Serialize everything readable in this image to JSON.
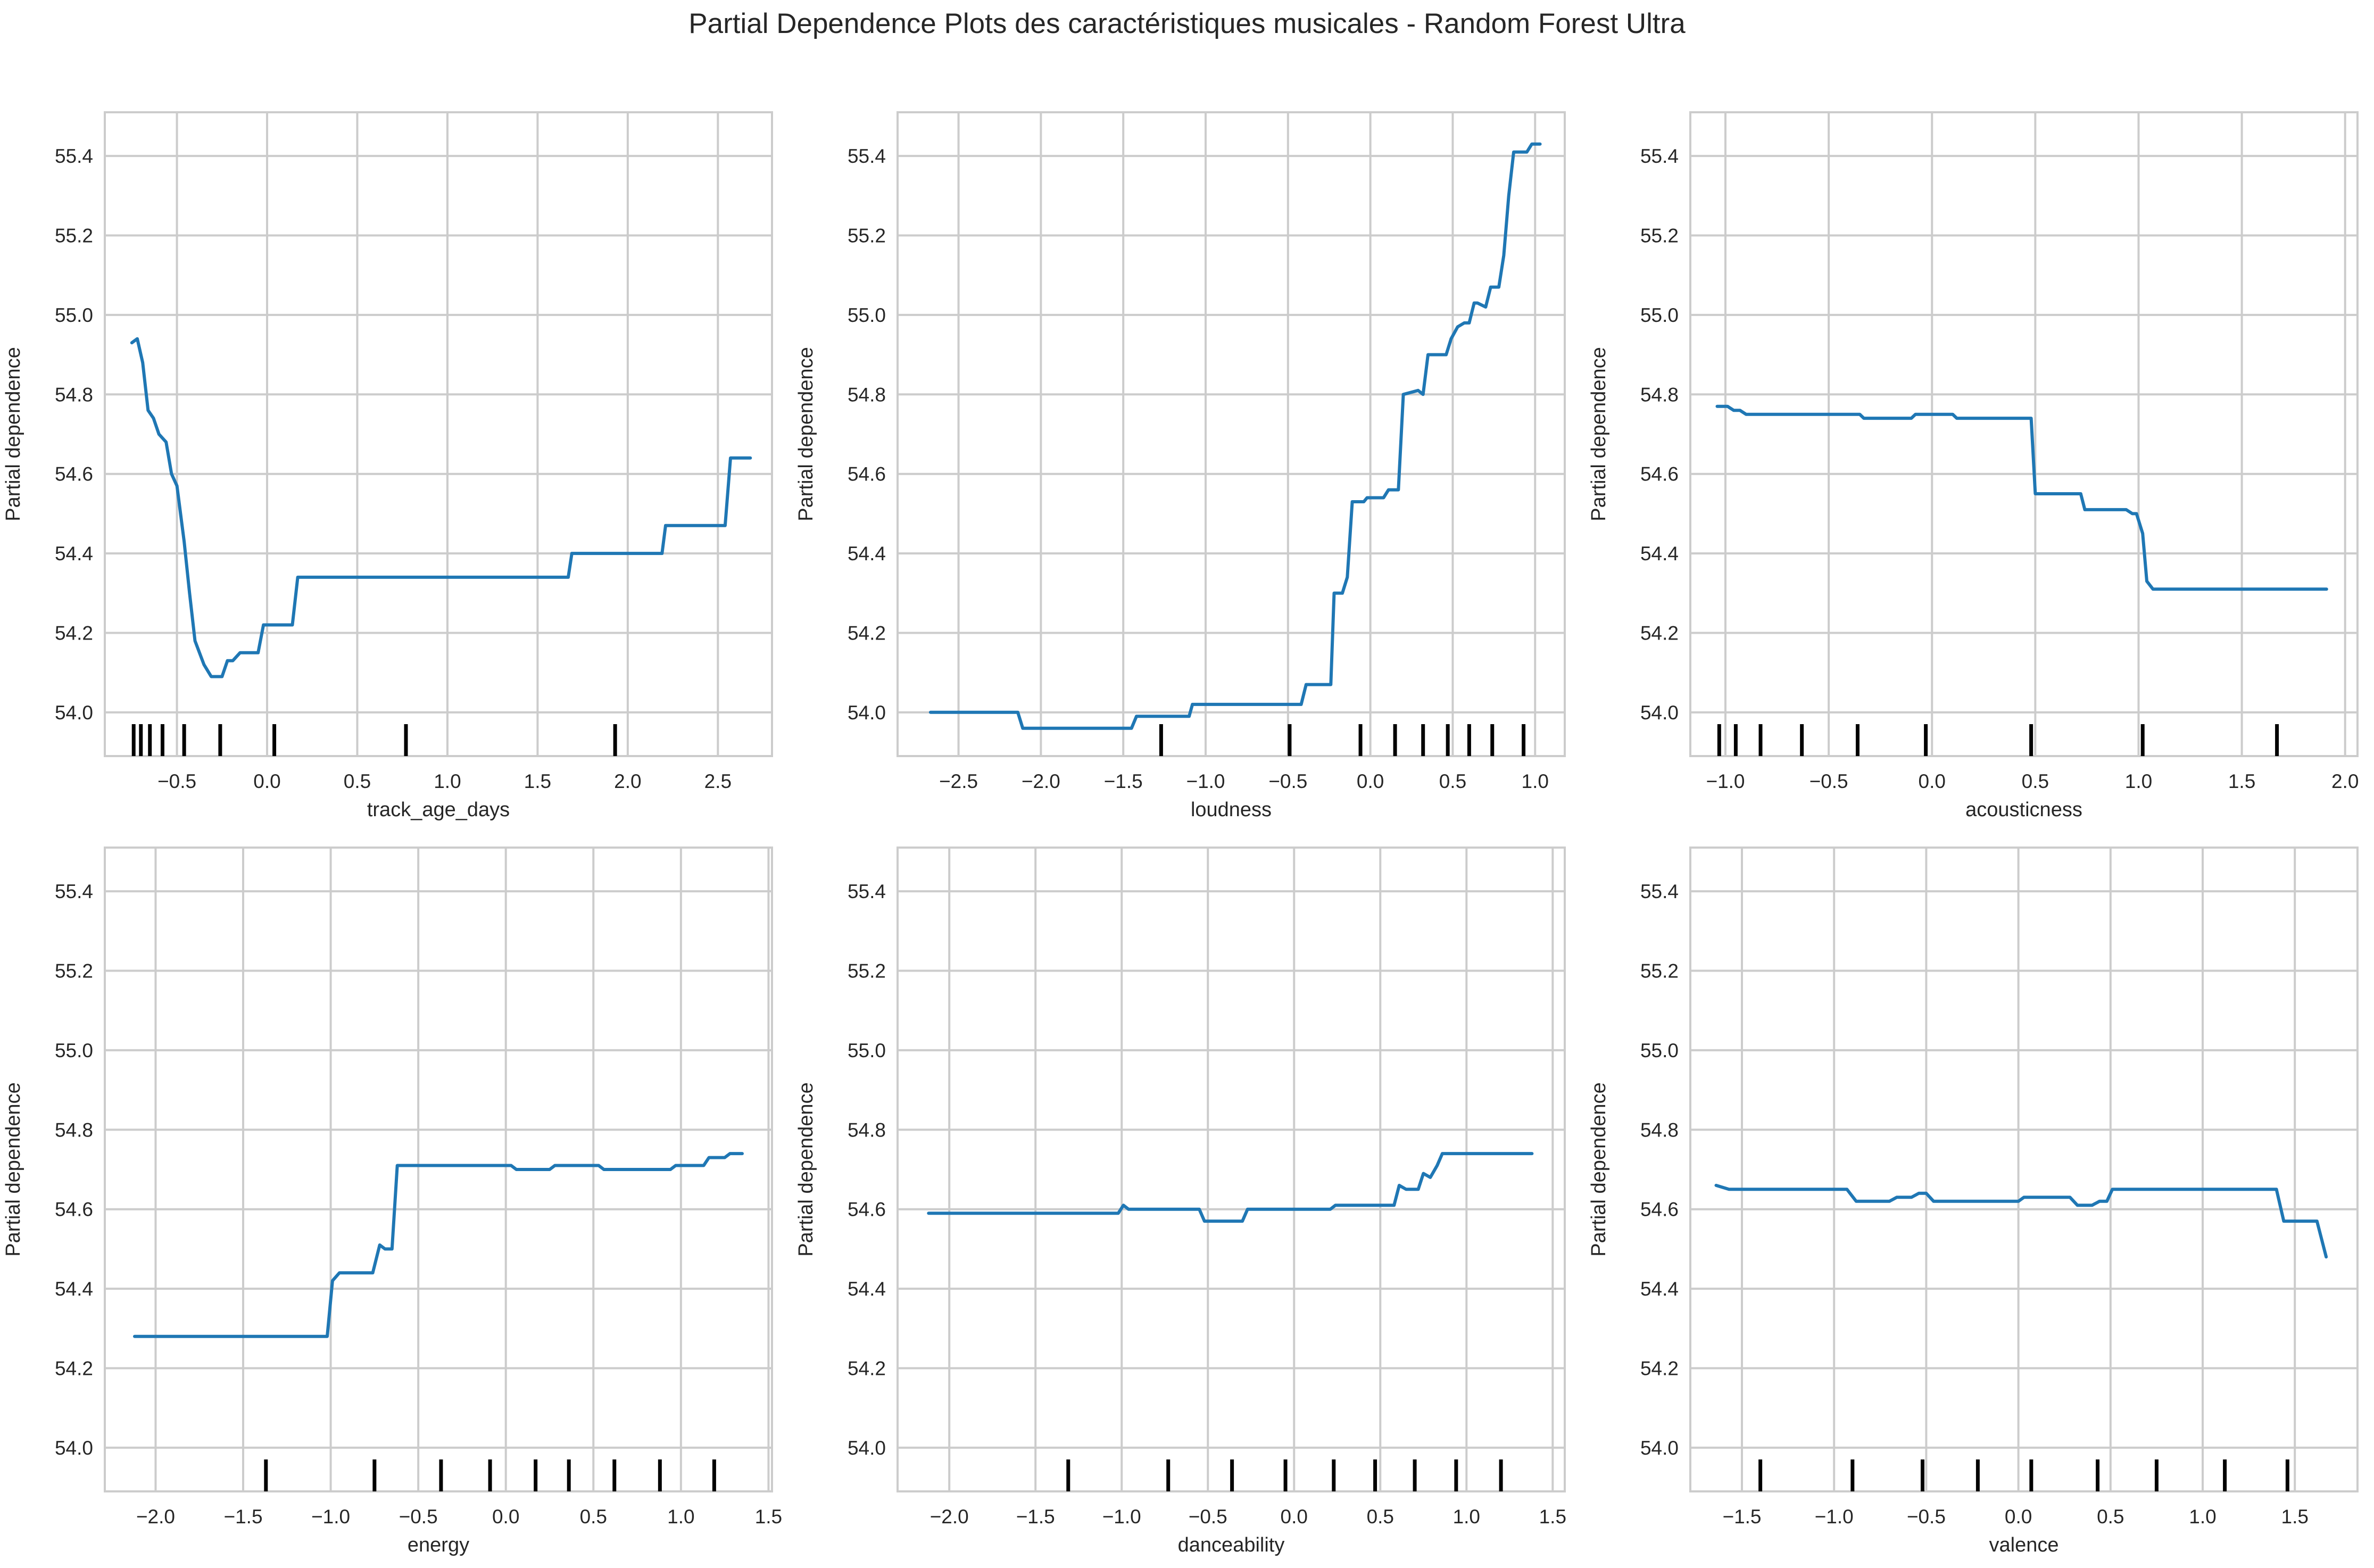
{
  "title": "Partial Dependence Plots des caractéristiques musicales - Random Forest Ultra",
  "colors": {
    "line": "#1f77b4",
    "grid": "#cccccc",
    "axes_edge": "#cccccc",
    "rug": "#000000",
    "text": "#262626"
  },
  "chart_data": [
    {
      "type": "line",
      "title": "",
      "xlabel": "track_age_days",
      "ylabel": "Partial dependence",
      "xlim": [
        -0.9,
        2.8
      ],
      "ylim": [
        53.89,
        55.51
      ],
      "xticks": [
        -0.5,
        0.0,
        0.5,
        1.0,
        1.5,
        2.0,
        2.5
      ],
      "yticks": [
        54.0,
        54.2,
        54.4,
        54.6,
        54.8,
        55.0,
        55.2,
        55.4
      ],
      "grid": true,
      "series": [
        {
          "points": [
            [
              -0.75,
              54.93
            ],
            [
              -0.72,
              54.94
            ],
            [
              -0.69,
              54.88
            ],
            [
              -0.66,
              54.76
            ],
            [
              -0.63,
              54.74
            ],
            [
              -0.6,
              54.7
            ],
            [
              -0.56,
              54.68
            ],
            [
              -0.53,
              54.6
            ],
            [
              -0.5,
              54.57
            ],
            [
              -0.46,
              54.43
            ],
            [
              -0.43,
              54.3
            ],
            [
              -0.4,
              54.18
            ],
            [
              -0.35,
              54.12
            ],
            [
              -0.31,
              54.09
            ],
            [
              -0.25,
              54.09
            ],
            [
              -0.22,
              54.13
            ],
            [
              -0.19,
              54.13
            ],
            [
              -0.15,
              54.15
            ],
            [
              -0.05,
              54.15
            ],
            [
              -0.02,
              54.22
            ],
            [
              0.14,
              54.22
            ],
            [
              0.17,
              54.34
            ],
            [
              1.67,
              54.34
            ],
            [
              1.69,
              54.4
            ],
            [
              2.19,
              54.4
            ],
            [
              2.21,
              54.47
            ],
            [
              2.54,
              54.47
            ],
            [
              2.57,
              54.64
            ],
            [
              2.68,
              54.64
            ]
          ]
        }
      ],
      "rug": [
        -0.74,
        -0.7,
        -0.65,
        -0.58,
        -0.46,
        -0.26,
        0.04,
        0.77,
        1.93
      ]
    },
    {
      "type": "line",
      "title": "",
      "xlabel": "loudness",
      "ylabel": "Partial dependence",
      "xlim": [
        -2.87,
        1.18
      ],
      "ylim": [
        53.89,
        55.51
      ],
      "xticks": [
        -2.5,
        -2.0,
        -1.5,
        -1.0,
        -0.5,
        0.0,
        0.5,
        1.0
      ],
      "yticks": [
        54.0,
        54.2,
        54.4,
        54.6,
        54.8,
        55.0,
        55.2,
        55.4
      ],
      "grid": true,
      "series": [
        {
          "points": [
            [
              -2.67,
              54.0
            ],
            [
              -2.14,
              54.0
            ],
            [
              -2.11,
              53.96
            ],
            [
              -1.5,
              53.96
            ],
            [
              -1.45,
              53.96
            ],
            [
              -1.42,
              53.99
            ],
            [
              -1.1,
              53.99
            ],
            [
              -1.08,
              54.02
            ],
            [
              -0.42,
              54.02
            ],
            [
              -0.39,
              54.07
            ],
            [
              -0.24,
              54.07
            ],
            [
              -0.22,
              54.3
            ],
            [
              -0.17,
              54.3
            ],
            [
              -0.14,
              54.34
            ],
            [
              -0.11,
              54.53
            ],
            [
              -0.04,
              54.53
            ],
            [
              -0.02,
              54.54
            ],
            [
              0.08,
              54.54
            ],
            [
              0.11,
              54.56
            ],
            [
              0.17,
              54.56
            ],
            [
              0.2,
              54.8
            ],
            [
              0.29,
              54.81
            ],
            [
              0.32,
              54.8
            ],
            [
              0.35,
              54.9
            ],
            [
              0.46,
              54.9
            ],
            [
              0.49,
              54.94
            ],
            [
              0.53,
              54.97
            ],
            [
              0.57,
              54.98
            ],
            [
              0.6,
              54.98
            ],
            [
              0.63,
              55.03
            ],
            [
              0.65,
              55.03
            ],
            [
              0.7,
              55.02
            ],
            [
              0.73,
              55.07
            ],
            [
              0.78,
              55.07
            ],
            [
              0.81,
              55.15
            ],
            [
              0.84,
              55.3
            ],
            [
              0.87,
              55.41
            ],
            [
              0.95,
              55.41
            ],
            [
              0.98,
              55.43
            ],
            [
              1.03,
              55.43
            ]
          ]
        }
      ],
      "rug": [
        -1.27,
        -0.49,
        -0.06,
        0.15,
        0.32,
        0.47,
        0.6,
        0.74,
        0.93
      ]
    },
    {
      "type": "line",
      "title": "",
      "xlabel": "acousticness",
      "ylabel": "Partial dependence",
      "xlim": [
        -1.17,
        2.06
      ],
      "ylim": [
        53.89,
        55.51
      ],
      "xticks": [
        -1.0,
        -0.5,
        0.0,
        0.5,
        1.0,
        1.5,
        2.0
      ],
      "yticks": [
        54.0,
        54.2,
        54.4,
        54.6,
        54.8,
        55.0,
        55.2,
        55.4
      ],
      "grid": true,
      "series": [
        {
          "points": [
            [
              -1.04,
              54.77
            ],
            [
              -0.99,
              54.77
            ],
            [
              -0.96,
              54.76
            ],
            [
              -0.93,
              54.76
            ],
            [
              -0.9,
              54.75
            ],
            [
              -0.35,
              54.75
            ],
            [
              -0.33,
              54.74
            ],
            [
              -0.1,
              54.74
            ],
            [
              -0.08,
              54.75
            ],
            [
              0.1,
              54.75
            ],
            [
              0.12,
              54.74
            ],
            [
              0.48,
              54.74
            ],
            [
              0.5,
              54.55
            ],
            [
              0.72,
              54.55
            ],
            [
              0.74,
              54.51
            ],
            [
              0.94,
              54.51
            ],
            [
              0.97,
              54.5
            ],
            [
              0.99,
              54.5
            ],
            [
              1.02,
              54.45
            ],
            [
              1.04,
              54.33
            ],
            [
              1.07,
              54.31
            ],
            [
              1.91,
              54.31
            ]
          ]
        }
      ],
      "rug": [
        -1.03,
        -0.95,
        -0.83,
        -0.63,
        -0.36,
        -0.03,
        0.48,
        1.02,
        1.67
      ]
    },
    {
      "type": "line",
      "title": "",
      "xlabel": "energy",
      "ylabel": "Partial dependence",
      "xlim": [
        -2.29,
        1.52
      ],
      "ylim": [
        53.89,
        55.51
      ],
      "xticks": [
        -2.0,
        -1.5,
        -1.0,
        -0.5,
        0.0,
        0.5,
        1.0,
        1.5
      ],
      "yticks": [
        54.0,
        54.2,
        54.4,
        54.6,
        54.8,
        55.0,
        55.2,
        55.4
      ],
      "grid": true,
      "series": [
        {
          "points": [
            [
              -2.12,
              54.28
            ],
            [
              -1.02,
              54.28
            ],
            [
              -0.99,
              54.42
            ],
            [
              -0.95,
              54.44
            ],
            [
              -0.76,
              54.44
            ],
            [
              -0.72,
              54.51
            ],
            [
              -0.69,
              54.5
            ],
            [
              -0.65,
              54.5
            ],
            [
              -0.62,
              54.71
            ],
            [
              0.03,
              54.71
            ],
            [
              0.06,
              54.7
            ],
            [
              0.25,
              54.7
            ],
            [
              0.28,
              54.71
            ],
            [
              0.53,
              54.71
            ],
            [
              0.56,
              54.7
            ],
            [
              0.94,
              54.7
            ],
            [
              0.97,
              54.71
            ],
            [
              1.13,
              54.71
            ],
            [
              1.16,
              54.73
            ],
            [
              1.25,
              54.73
            ],
            [
              1.28,
              54.74
            ],
            [
              1.35,
              54.74
            ]
          ]
        }
      ],
      "rug": [
        -1.37,
        -0.75,
        -0.37,
        -0.09,
        0.17,
        0.36,
        0.62,
        0.88,
        1.19
      ]
    },
    {
      "type": "line",
      "title": "",
      "xlabel": "danceability",
      "ylabel": "Partial dependence",
      "xlim": [
        -2.3,
        1.57
      ],
      "ylim": [
        53.89,
        55.51
      ],
      "xticks": [
        -2.0,
        -1.5,
        -1.0,
        -0.5,
        0.0,
        0.5,
        1.0,
        1.5
      ],
      "yticks": [
        54.0,
        54.2,
        54.4,
        54.6,
        54.8,
        55.0,
        55.2,
        55.4
      ],
      "grid": true,
      "series": [
        {
          "points": [
            [
              -2.12,
              54.59
            ],
            [
              -1.02,
              54.59
            ],
            [
              -0.99,
              54.61
            ],
            [
              -0.96,
              54.6
            ],
            [
              -0.6,
              54.6
            ],
            [
              -0.55,
              54.6
            ],
            [
              -0.52,
              54.57
            ],
            [
              -0.3,
              54.57
            ],
            [
              -0.27,
              54.6
            ],
            [
              0.21,
              54.6
            ],
            [
              0.24,
              54.61
            ],
            [
              0.58,
              54.61
            ],
            [
              0.61,
              54.66
            ],
            [
              0.65,
              54.65
            ],
            [
              0.72,
              54.65
            ],
            [
              0.75,
              54.69
            ],
            [
              0.79,
              54.68
            ],
            [
              0.83,
              54.71
            ],
            [
              0.86,
              54.74
            ],
            [
              1.38,
              54.74
            ]
          ]
        }
      ],
      "rug": [
        -1.31,
        -0.73,
        -0.36,
        -0.05,
        0.23,
        0.47,
        0.7,
        0.94,
        1.2
      ]
    },
    {
      "type": "line",
      "title": "",
      "xlabel": "valence",
      "ylabel": "Partial dependence",
      "xlim": [
        -1.78,
        1.84
      ],
      "ylim": [
        53.89,
        55.51
      ],
      "xticks": [
        -1.5,
        -1.0,
        -0.5,
        0.0,
        0.5,
        1.0,
        1.5
      ],
      "yticks": [
        54.0,
        54.2,
        54.4,
        54.6,
        54.8,
        55.0,
        55.2,
        55.4
      ],
      "grid": true,
      "series": [
        {
          "points": [
            [
              -1.64,
              54.66
            ],
            [
              -1.57,
              54.65
            ],
            [
              -0.93,
              54.65
            ],
            [
              -0.88,
              54.62
            ],
            [
              -0.7,
              54.62
            ],
            [
              -0.66,
              54.63
            ],
            [
              -0.58,
              54.63
            ],
            [
              -0.54,
              54.64
            ],
            [
              -0.5,
              54.64
            ],
            [
              -0.46,
              54.62
            ],
            [
              0.0,
              54.62
            ],
            [
              0.03,
              54.63
            ],
            [
              0.28,
              54.63
            ],
            [
              0.32,
              54.61
            ],
            [
              0.4,
              54.61
            ],
            [
              0.44,
              54.62
            ],
            [
              0.48,
              54.62
            ],
            [
              0.51,
              54.65
            ],
            [
              1.4,
              54.65
            ],
            [
              1.44,
              54.57
            ],
            [
              1.62,
              54.57
            ],
            [
              1.67,
              54.48
            ]
          ]
        }
      ],
      "rug": [
        -1.4,
        -0.9,
        -0.52,
        -0.22,
        0.07,
        0.43,
        0.75,
        1.12,
        1.46
      ]
    }
  ]
}
